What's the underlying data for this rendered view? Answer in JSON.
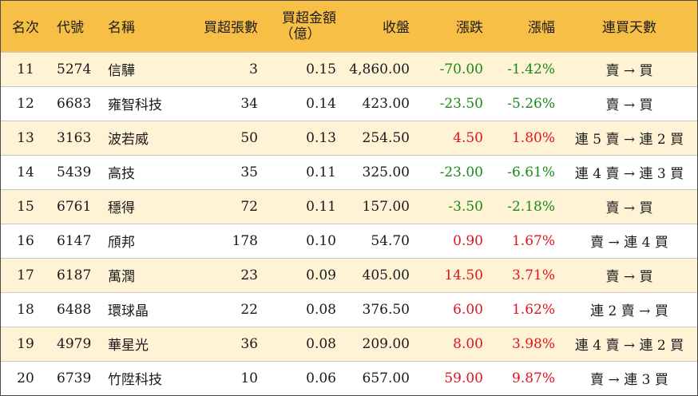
{
  "headers": {
    "rank": "名次",
    "code": "代號",
    "name": "名稱",
    "buy_volume": "買超張數",
    "buy_amount_line1": "買超金額",
    "buy_amount_line2": "（億）",
    "close": "收盤",
    "change": "漲跌",
    "change_pct": "漲幅",
    "streak": "連買天數"
  },
  "colors": {
    "header_bg": "#f7bf45",
    "stripe_bg": "#fff3d6",
    "up": "#e0141e",
    "down": "#1a8a1a"
  },
  "rows": [
    {
      "rank": "11",
      "code": "5274",
      "name": "信驊",
      "buy_volume": "3",
      "buy_amount": "0.15",
      "close": "4,860.00",
      "change": "-70.00",
      "change_pct": "-1.42%",
      "streak": "賣 → 買",
      "dir": "down"
    },
    {
      "rank": "12",
      "code": "6683",
      "name": "雍智科技",
      "buy_volume": "34",
      "buy_amount": "0.14",
      "close": "423.00",
      "change": "-23.50",
      "change_pct": "-5.26%",
      "streak": "賣 → 買",
      "dir": "down"
    },
    {
      "rank": "13",
      "code": "3163",
      "name": "波若威",
      "buy_volume": "50",
      "buy_amount": "0.13",
      "close": "254.50",
      "change": "4.50",
      "change_pct": "1.80%",
      "streak": "連 5 賣 → 連 2 買",
      "dir": "up"
    },
    {
      "rank": "14",
      "code": "5439",
      "name": "高技",
      "buy_volume": "35",
      "buy_amount": "0.11",
      "close": "325.00",
      "change": "-23.00",
      "change_pct": "-6.61%",
      "streak": "連 4 賣 → 連 3 買",
      "dir": "down"
    },
    {
      "rank": "15",
      "code": "6761",
      "name": "穩得",
      "buy_volume": "72",
      "buy_amount": "0.11",
      "close": "157.00",
      "change": "-3.50",
      "change_pct": "-2.18%",
      "streak": "賣 → 買",
      "dir": "down"
    },
    {
      "rank": "16",
      "code": "6147",
      "name": "頎邦",
      "buy_volume": "178",
      "buy_amount": "0.10",
      "close": "54.70",
      "change": "0.90",
      "change_pct": "1.67%",
      "streak": "賣 → 連 4 買",
      "dir": "up"
    },
    {
      "rank": "17",
      "code": "6187",
      "name": "萬潤",
      "buy_volume": "23",
      "buy_amount": "0.09",
      "close": "405.00",
      "change": "14.50",
      "change_pct": "3.71%",
      "streak": "賣 → 買",
      "dir": "up"
    },
    {
      "rank": "18",
      "code": "6488",
      "name": "環球晶",
      "buy_volume": "22",
      "buy_amount": "0.08",
      "close": "376.50",
      "change": "6.00",
      "change_pct": "1.62%",
      "streak": "連 2 賣 → 買",
      "dir": "up"
    },
    {
      "rank": "19",
      "code": "4979",
      "name": "華星光",
      "buy_volume": "36",
      "buy_amount": "0.08",
      "close": "209.00",
      "change": "8.00",
      "change_pct": "3.98%",
      "streak": "連 4 賣 → 連 2 買",
      "dir": "up"
    },
    {
      "rank": "20",
      "code": "6739",
      "name": "竹陞科技",
      "buy_volume": "10",
      "buy_amount": "0.06",
      "close": "657.00",
      "change": "59.00",
      "change_pct": "9.87%",
      "streak": "賣 → 連 3 買",
      "dir": "up"
    }
  ]
}
